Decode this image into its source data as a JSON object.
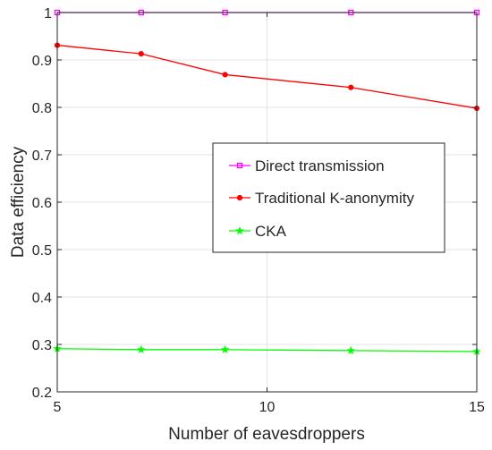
{
  "chart_data": {
    "type": "line",
    "xlabel": "Number of eavesdroppers",
    "ylabel": "Data efficiency",
    "xlim": [
      5,
      15
    ],
    "ylim": [
      0.2,
      1
    ],
    "xticks": [
      5,
      10,
      15
    ],
    "yticks": [
      0.2,
      0.3,
      0.4,
      0.5,
      0.6,
      0.7,
      0.8,
      0.9,
      1
    ],
    "ytick_labels": [
      "0.2",
      "0.3",
      "0.4",
      "0.5",
      "0.6",
      "0.7",
      "0.8",
      "0.9",
      "1"
    ],
    "grid": true,
    "legend_position": "center-right",
    "series": [
      {
        "name": "Direct transmission",
        "color": "#ff00ff",
        "marker": "square",
        "x": [
          5,
          7,
          9,
          12,
          15
        ],
        "y": [
          1,
          1,
          1,
          1,
          1
        ]
      },
      {
        "name": "Traditional K-anonymity",
        "color": "#ff0000",
        "marker": "circle",
        "x": [
          5,
          7,
          9,
          12,
          15
        ],
        "y": [
          0.931,
          0.913,
          0.869,
          0.842,
          0.798
        ]
      },
      {
        "name": "CKA",
        "color": "#00ff00",
        "marker": "star",
        "x": [
          5,
          7,
          9,
          12,
          15
        ],
        "y": [
          0.291,
          0.289,
          0.289,
          0.287,
          0.285
        ]
      }
    ]
  }
}
